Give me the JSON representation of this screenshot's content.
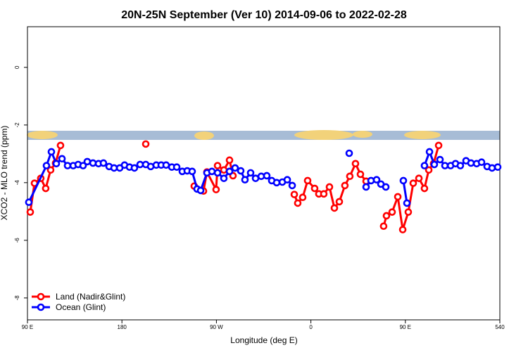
{
  "chart_data": {
    "type": "line",
    "title": "20N-25N September (Ver 10)   2014-09-06 to 2022-02-28",
    "x_label": "Longitude (deg E)",
    "y_label": "XCO2 - MLO trend (ppm)",
    "xlim": [
      90,
      540
    ],
    "ylim": [
      -8.76,
      1.41
    ],
    "xticks": [
      {
        "value": 90,
        "label": "90 E"
      },
      180,
      {
        "value": 270,
        "label": "90 W"
      },
      {
        "value": 360,
        "label": "0"
      },
      {
        "value": 450,
        "label": "90 E"
      },
      540
    ],
    "yticks": [
      0,
      -2,
      -4,
      -6,
      -8
    ],
    "legend": "bottomleft",
    "series": [
      {
        "name": "Land (Nadir&Glint)",
        "color": "#ff0000",
        "x": [
          92.7,
          96.7,
          102.7,
          107.4,
          112.1,
          116.8,
          121.5,
          null,
          202.7,
          null,
          248.9,
          257.7,
          261.0,
          269.7,
          271.1,
          277.1,
          282.5,
          285.8,
          null,
          344.2,
          347.5,
          352.2,
          356.9,
          363.6,
          367.6,
          372.3,
          377.7,
          382.4,
          387.1,
          392.4,
          397.1,
          402.5,
          407.2,
          412.6,
          null,
          429.3,
          432.0,
          437.4,
          442.8,
          447.5,
          452.8,
          457.5,
          462.9,
          468.2,
          472.3,
          476.9,
          481.7
        ],
        "values": [
          -5.02,
          -4.02,
          -3.85,
          -4.2,
          -3.56,
          -3.32,
          -2.71,
          null,
          -2.66,
          null,
          -4.12,
          -4.29,
          -3.63,
          -4.24,
          -3.41,
          -3.56,
          -3.22,
          -3.76,
          null,
          -4.41,
          -4.71,
          -4.51,
          -3.93,
          -4.2,
          -4.39,
          -4.39,
          -4.15,
          -4.88,
          -4.66,
          -4.1,
          -3.78,
          -3.34,
          -3.71,
          -3.95,
          null,
          -5.51,
          -5.15,
          -5.02,
          -4.49,
          -5.63,
          -5.02,
          -4.02,
          -3.85,
          -4.2,
          -3.56,
          -3.34,
          -2.71
        ]
      },
      {
        "name": "Ocean (Glint)",
        "color": "#0000ff",
        "x": [
          91.3,
          108.1,
          112.8,
          117.5,
          122.9,
          128.2,
          133.6,
          138.3,
          143.0,
          147.0,
          152.4,
          157.7,
          162.4,
          167.8,
          172.5,
          177.9,
          182.5,
          187.2,
          191.9,
          197.3,
          202.7,
          207.4,
          212.7,
          217.4,
          222.1,
          227.5,
          232.2,
          237.5,
          242.2,
          246.9,
          251.6,
          255.0,
          261.0,
          265.7,
          271.1,
          277.1,
          282.5,
          287.8,
          293.2,
          297.2,
          302.6,
          307.3,
          312.7,
          318.0,
          322.7,
          327.4,
          332.8,
          337.5,
          342.2,
          null,
          396.5,
          null,
          412.6,
          417.3,
          422.6,
          426.7,
          431.4,
          null,
          448.1,
          451.5,
          null,
          468.2,
          473.0,
          477.6,
          483.0,
          487.7,
          493.1,
          497.8,
          502.4,
          507.8,
          512.5,
          517.9,
          522.6,
          527.9,
          532.6,
          538.0
        ],
        "values": [
          -4.68,
          -3.41,
          -2.93,
          -3.34,
          -3.17,
          -3.41,
          -3.41,
          -3.37,
          -3.41,
          -3.27,
          -3.32,
          -3.34,
          -3.32,
          -3.44,
          -3.49,
          -3.49,
          -3.39,
          -3.46,
          -3.49,
          -3.37,
          -3.37,
          -3.44,
          -3.39,
          -3.39,
          -3.39,
          -3.46,
          -3.46,
          -3.61,
          -3.59,
          -3.61,
          -4.22,
          -4.27,
          -3.66,
          -3.61,
          -3.66,
          -3.85,
          -3.61,
          -3.49,
          -3.59,
          -3.9,
          -3.66,
          -3.85,
          -3.78,
          -3.76,
          -3.93,
          -4.0,
          -3.98,
          -3.9,
          -4.1,
          null,
          -2.98,
          null,
          -4.15,
          -3.93,
          -3.9,
          -4.05,
          -4.15,
          null,
          -3.93,
          -4.71,
          null,
          -3.41,
          -2.93,
          -3.37,
          -3.2,
          -3.41,
          -3.41,
          -3.34,
          -3.41,
          -3.24,
          -3.32,
          -3.34,
          -3.29,
          -3.44,
          -3.49,
          -3.46
        ]
      }
    ]
  }
}
